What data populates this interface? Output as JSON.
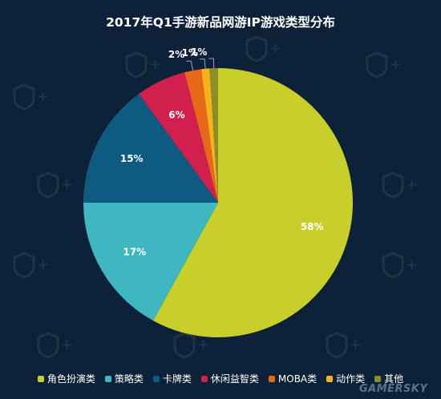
{
  "watermark": "GAMERSKY",
  "chart_data": {
    "type": "pie",
    "title": "2017年Q1手游新品网游IP游戏类型分布",
    "slices": [
      {
        "name": "角色扮演类",
        "value": 58,
        "label": "58%",
        "color": "#c9cf2a"
      },
      {
        "name": "策略类",
        "value": 17,
        "label": "17%",
        "color": "#3fb7c0"
      },
      {
        "name": "卡牌类",
        "value": 15,
        "label": "15%",
        "color": "#0f5a80"
      },
      {
        "name": "休闲益智类",
        "value": 6,
        "label": "6%",
        "color": "#d11f4e"
      },
      {
        "name": "MOBA类",
        "value": 2,
        "label": "2%",
        "color": "#e8681a"
      },
      {
        "name": "动作类",
        "value": 1,
        "label": "1%",
        "color": "#f6b21c"
      },
      {
        "name": "其他",
        "value": 1,
        "label": "1%",
        "color": "#8a8f2a"
      }
    ],
    "legend_position": "bottom"
  }
}
